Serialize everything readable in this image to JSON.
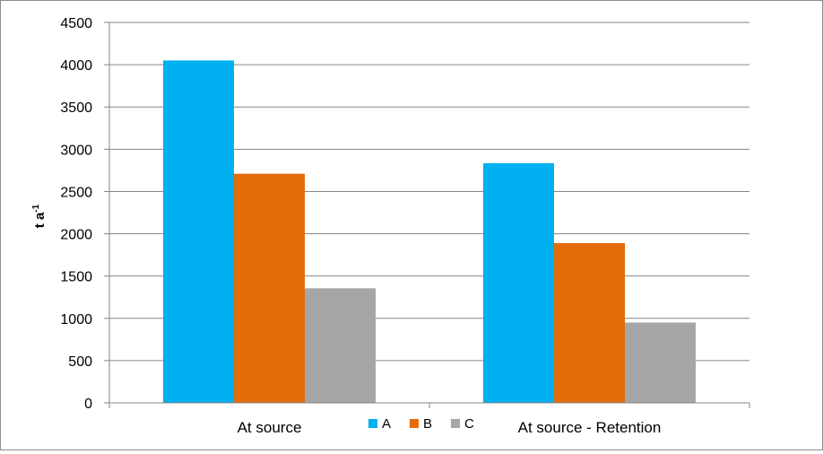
{
  "chart_data": {
    "type": "bar",
    "categories": [
      "At source",
      "At source - Retention"
    ],
    "series": [
      {
        "name": "A",
        "values": [
          4050,
          2835
        ],
        "color": "#00B0F0"
      },
      {
        "name": "B",
        "values": [
          2710,
          1890
        ],
        "color": "#E46C0A"
      },
      {
        "name": "C",
        "values": [
          1355,
          950
        ],
        "color": "#A6A6A6"
      }
    ],
    "ylabel": {
      "base": "t a",
      "superscript": "-1"
    },
    "xlabel": "",
    "ylim": [
      0,
      4500
    ],
    "yticks": [
      0,
      500,
      1000,
      1500,
      2000,
      2500,
      3000,
      3500,
      4000,
      4500
    ],
    "grid": true,
    "legend": "bottom"
  }
}
